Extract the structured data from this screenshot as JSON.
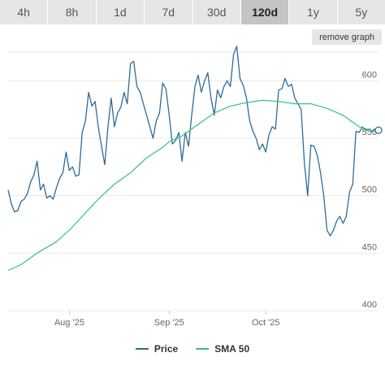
{
  "tabs": [
    {
      "label": "4h",
      "active": false
    },
    {
      "label": "8h",
      "active": false
    },
    {
      "label": "1d",
      "active": false
    },
    {
      "label": "7d",
      "active": false
    },
    {
      "label": "30d",
      "active": false
    },
    {
      "label": "120d",
      "active": true
    },
    {
      "label": "1y",
      "active": false
    },
    {
      "label": "5y",
      "active": false
    }
  ],
  "remove_graph_label": "remove graph",
  "chart_data": {
    "type": "line",
    "title": "",
    "xlabel": "",
    "ylabel": "",
    "ylim": [
      400,
      625
    ],
    "y_ticks": [
      400,
      450,
      500,
      550,
      600
    ],
    "x_range": [
      "2025-07-13",
      "2025-11-05"
    ],
    "x_ticks": [
      {
        "date": "2025-08-01",
        "label": "Aug '25"
      },
      {
        "date": "2025-09-01",
        "label": "Sep '25"
      },
      {
        "date": "2025-10-01",
        "label": "Oct '25"
      }
    ],
    "grid": true,
    "legend_position": "bottom",
    "series": [
      {
        "name": "Price",
        "color": "#2f6b9a",
        "points": [
          [
            "2025-07-13",
            505
          ],
          [
            "2025-07-14",
            493
          ],
          [
            "2025-07-15",
            486
          ],
          [
            "2025-07-16",
            487
          ],
          [
            "2025-07-17",
            495
          ],
          [
            "2025-07-18",
            497
          ],
          [
            "2025-07-19",
            502
          ],
          [
            "2025-07-20",
            512
          ],
          [
            "2025-07-21",
            518
          ],
          [
            "2025-07-22",
            530
          ],
          [
            "2025-07-23",
            505
          ],
          [
            "2025-07-24",
            510
          ],
          [
            "2025-07-25",
            498
          ],
          [
            "2025-07-26",
            500
          ],
          [
            "2025-07-27",
            497
          ],
          [
            "2025-07-28",
            507
          ],
          [
            "2025-07-29",
            515
          ],
          [
            "2025-07-30",
            520
          ],
          [
            "2025-07-31",
            538
          ],
          [
            "2025-08-01",
            522
          ],
          [
            "2025-08-02",
            525
          ],
          [
            "2025-08-03",
            517
          ],
          [
            "2025-08-04",
            518
          ],
          [
            "2025-08-05",
            555
          ],
          [
            "2025-08-06",
            565
          ],
          [
            "2025-08-07",
            590
          ],
          [
            "2025-08-08",
            578
          ],
          [
            "2025-08-09",
            582
          ],
          [
            "2025-08-10",
            560
          ],
          [
            "2025-08-11",
            543
          ],
          [
            "2025-08-12",
            527
          ],
          [
            "2025-08-13",
            560
          ],
          [
            "2025-08-14",
            585
          ],
          [
            "2025-08-15",
            560
          ],
          [
            "2025-08-16",
            572
          ],
          [
            "2025-08-17",
            577
          ],
          [
            "2025-08-18",
            590
          ],
          [
            "2025-08-19",
            580
          ],
          [
            "2025-08-20",
            615
          ],
          [
            "2025-08-21",
            617
          ],
          [
            "2025-08-22",
            595
          ],
          [
            "2025-08-23",
            590
          ],
          [
            "2025-08-24",
            580
          ],
          [
            "2025-08-25",
            570
          ],
          [
            "2025-08-26",
            560
          ],
          [
            "2025-08-27",
            550
          ],
          [
            "2025-08-28",
            565
          ],
          [
            "2025-08-29",
            572
          ],
          [
            "2025-08-30",
            598
          ],
          [
            "2025-08-31",
            593
          ],
          [
            "2025-09-01",
            570
          ],
          [
            "2025-09-02",
            545
          ],
          [
            "2025-09-03",
            548
          ],
          [
            "2025-09-04",
            555
          ],
          [
            "2025-09-05",
            530
          ],
          [
            "2025-09-06",
            555
          ],
          [
            "2025-09-07",
            543
          ],
          [
            "2025-09-08",
            570
          ],
          [
            "2025-09-09",
            595
          ],
          [
            "2025-09-10",
            605
          ],
          [
            "2025-09-11",
            590
          ],
          [
            "2025-09-12",
            600
          ],
          [
            "2025-09-13",
            607
          ],
          [
            "2025-09-14",
            585
          ],
          [
            "2025-09-15",
            570
          ],
          [
            "2025-09-16",
            592
          ],
          [
            "2025-09-17",
            585
          ],
          [
            "2025-09-18",
            595
          ],
          [
            "2025-09-19",
            600
          ],
          [
            "2025-09-20",
            595
          ],
          [
            "2025-09-21",
            623
          ],
          [
            "2025-09-22",
            630
          ],
          [
            "2025-09-23",
            602
          ],
          [
            "2025-09-24",
            596
          ],
          [
            "2025-09-25",
            585
          ],
          [
            "2025-09-26",
            565
          ],
          [
            "2025-09-27",
            556
          ],
          [
            "2025-09-28",
            550
          ],
          [
            "2025-09-29",
            540
          ],
          [
            "2025-09-30",
            545
          ],
          [
            "2025-10-01",
            538
          ],
          [
            "2025-10-02",
            553
          ],
          [
            "2025-10-03",
            560
          ],
          [
            "2025-10-04",
            558
          ],
          [
            "2025-10-05",
            592
          ],
          [
            "2025-10-06",
            593
          ],
          [
            "2025-10-07",
            602
          ],
          [
            "2025-10-08",
            595
          ],
          [
            "2025-10-09",
            597
          ],
          [
            "2025-10-10",
            585
          ],
          [
            "2025-10-11",
            580
          ],
          [
            "2025-10-12",
            575
          ],
          [
            "2025-10-13",
            528
          ],
          [
            "2025-10-14",
            500
          ],
          [
            "2025-10-15",
            544
          ],
          [
            "2025-10-16",
            543
          ],
          [
            "2025-10-17",
            535
          ],
          [
            "2025-10-18",
            520
          ],
          [
            "2025-10-19",
            500
          ],
          [
            "2025-10-20",
            470
          ],
          [
            "2025-10-21",
            465
          ],
          [
            "2025-10-22",
            470
          ],
          [
            "2025-10-23",
            478
          ],
          [
            "2025-10-24",
            482
          ],
          [
            "2025-10-25",
            476
          ],
          [
            "2025-10-26",
            482
          ],
          [
            "2025-10-27",
            503
          ],
          [
            "2025-10-28",
            510
          ],
          [
            "2025-10-29",
            556
          ],
          [
            "2025-10-30",
            555
          ],
          [
            "2025-10-31",
            560
          ],
          [
            "2025-11-01",
            557
          ],
          [
            "2025-11-02",
            558
          ],
          [
            "2025-11-03",
            556
          ],
          [
            "2025-11-04",
            558
          ],
          [
            "2025-11-05",
            557
          ]
        ]
      },
      {
        "name": "SMA 50",
        "color": "#38c27a",
        "points": [
          [
            "2025-07-13",
            435
          ],
          [
            "2025-07-17",
            440
          ],
          [
            "2025-07-22",
            450
          ],
          [
            "2025-07-28",
            460
          ],
          [
            "2025-08-01",
            470
          ],
          [
            "2025-08-05",
            482
          ],
          [
            "2025-08-10",
            497
          ],
          [
            "2025-08-15",
            510
          ],
          [
            "2025-08-20",
            520
          ],
          [
            "2025-08-25",
            533
          ],
          [
            "2025-08-30",
            542
          ],
          [
            "2025-09-01",
            547
          ],
          [
            "2025-09-05",
            552
          ],
          [
            "2025-09-10",
            562
          ],
          [
            "2025-09-15",
            572
          ],
          [
            "2025-09-20",
            578
          ],
          [
            "2025-09-25",
            581
          ],
          [
            "2025-09-30",
            583
          ],
          [
            "2025-10-05",
            582
          ],
          [
            "2025-10-10",
            580
          ],
          [
            "2025-10-15",
            580
          ],
          [
            "2025-10-20",
            576
          ],
          [
            "2025-10-25",
            570
          ],
          [
            "2025-10-30",
            560
          ],
          [
            "2025-11-05",
            555
          ]
        ]
      }
    ]
  }
}
